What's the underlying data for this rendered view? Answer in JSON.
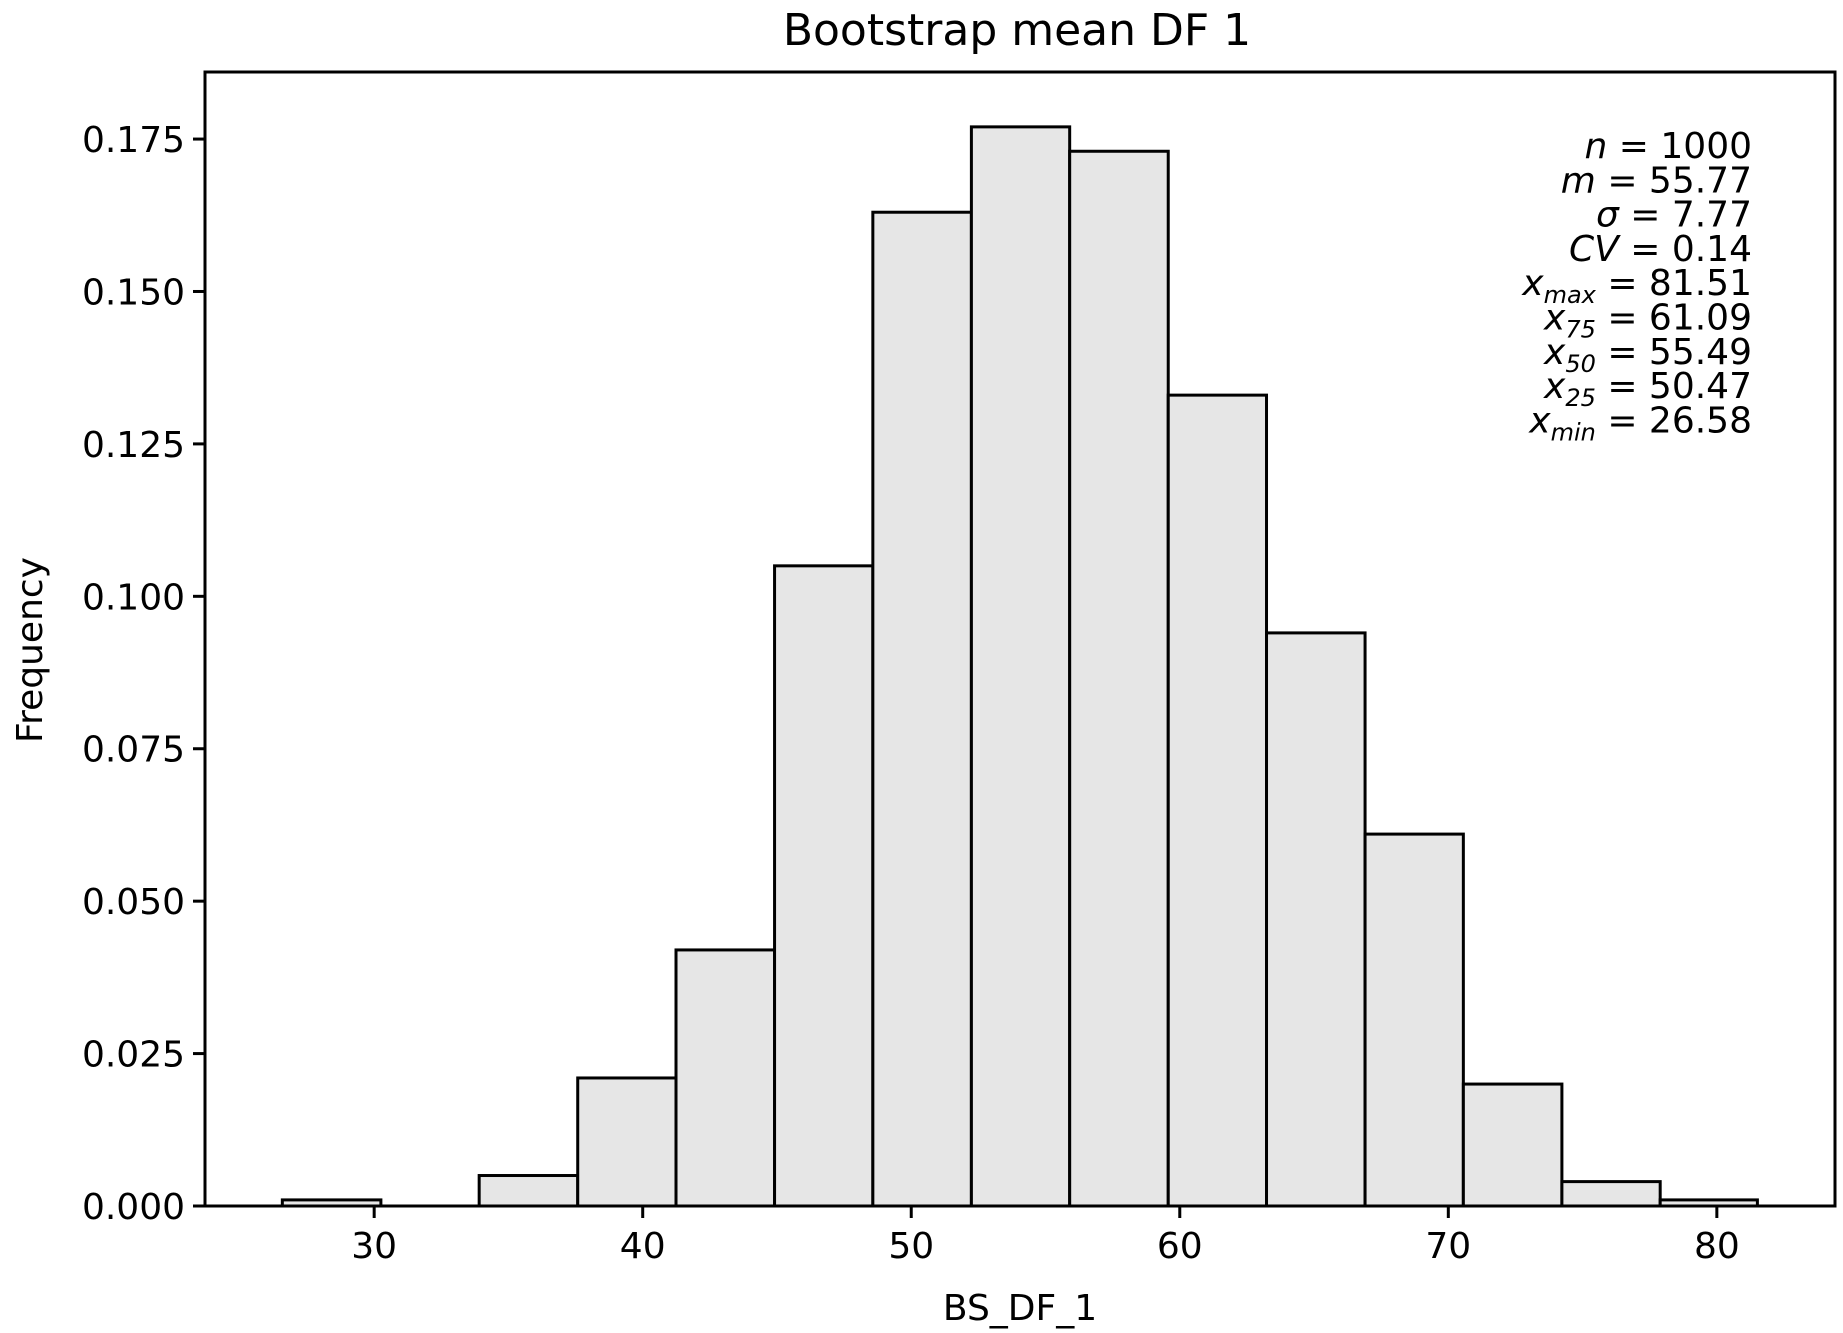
{
  "chart_data": {
    "type": "bar",
    "title": "Bootstrap mean DF 1",
    "xlabel": "BS_DF_1",
    "ylabel": "Frequency",
    "xlim": [
      23.7,
      84.4
    ],
    "ylim": [
      0.0,
      0.186
    ],
    "x_ticks": [
      30,
      40,
      50,
      60,
      70,
      80
    ],
    "x_tick_labels": [
      "30",
      "40",
      "50",
      "60",
      "70",
      "80"
    ],
    "y_ticks": [
      0.0,
      0.025,
      0.05,
      0.075,
      0.1,
      0.125,
      0.15,
      0.175
    ],
    "y_tick_labels": [
      "0.000",
      "0.025",
      "0.050",
      "0.075",
      "0.100",
      "0.125",
      "0.150",
      "0.175"
    ],
    "grid": false,
    "bins": [
      {
        "x0": 26.58,
        "x1": 30.25,
        "value": 0.001
      },
      {
        "x0": 30.25,
        "x1": 33.91,
        "value": 0.0
      },
      {
        "x0": 33.91,
        "x1": 37.58,
        "value": 0.005
      },
      {
        "x0": 37.58,
        "x1": 41.24,
        "value": 0.021
      },
      {
        "x0": 41.24,
        "x1": 44.91,
        "value": 0.042
      },
      {
        "x0": 44.91,
        "x1": 48.57,
        "value": 0.105
      },
      {
        "x0": 48.57,
        "x1": 52.24,
        "value": 0.163
      },
      {
        "x0": 52.24,
        "x1": 55.9,
        "value": 0.177
      },
      {
        "x0": 55.9,
        "x1": 59.57,
        "value": 0.173
      },
      {
        "x0": 59.57,
        "x1": 63.23,
        "value": 0.133
      },
      {
        "x0": 63.23,
        "x1": 66.9,
        "value": 0.094
      },
      {
        "x0": 66.9,
        "x1": 70.56,
        "value": 0.061
      },
      {
        "x0": 70.56,
        "x1": 74.23,
        "value": 0.02
      },
      {
        "x0": 74.23,
        "x1": 77.89,
        "value": 0.004
      },
      {
        "x0": 77.89,
        "x1": 81.51,
        "value": 0.001
      }
    ],
    "stats": [
      {
        "var": "n",
        "sub": "",
        "value": "1000"
      },
      {
        "var": "m",
        "sub": "",
        "value": "55.77"
      },
      {
        "var": "σ",
        "sub": "",
        "value": "7.77"
      },
      {
        "var": "CV",
        "sub": "",
        "value": "0.14"
      },
      {
        "var": "x",
        "sub": "max",
        "value": "81.51"
      },
      {
        "var": "x",
        "sub": "75",
        "value": "61.09"
      },
      {
        "var": "x",
        "sub": "50",
        "value": "55.49"
      },
      {
        "var": "x",
        "sub": "25",
        "value": "50.47"
      },
      {
        "var": "x",
        "sub": "min",
        "value": "26.58"
      }
    ],
    "stats_placement": "top-right",
    "colors": {
      "bar_fill": "#e6e6e6",
      "bar_edge": "#000000"
    }
  }
}
